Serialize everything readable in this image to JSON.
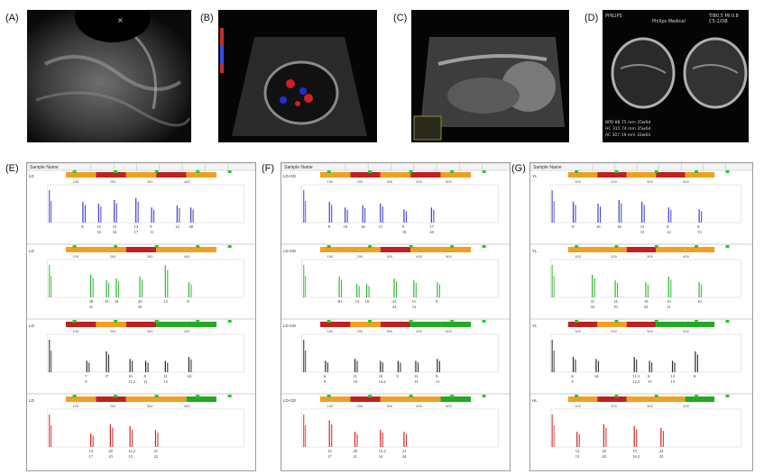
{
  "panels": {
    "A": {
      "label": "(A)"
    },
    "B": {
      "label": "(B)"
    },
    "C": {
      "label": "(C)"
    },
    "D": {
      "label": "(D)",
      "brand": "PHILIPS",
      "vendor": "Philips Medical",
      "probe": "C5-1/OB",
      "index": "TIB0.5  MI 0.8",
      "measurements": [
        "BPD  88.75 mm 35w6d",
        "HC   315.74 mm 35w6d",
        "AC   307.19 mm 33w6d"
      ]
    },
    "E": {
      "label": "(E)"
    },
    "F": {
      "label": "(F)"
    },
    "G": {
      "label": "(G)"
    }
  },
  "colors": {
    "blue": "#3b3bd0",
    "green": "#2fb52f",
    "black": "#222222",
    "red": "#d42020",
    "orange": "#f0a020",
    "darkred": "#c02020",
    "lime": "#22cc22"
  },
  "str": [
    {
      "key": "E",
      "header": "Sample Name",
      "tracks": [
        {
          "name": "LD",
          "color": "blue",
          "ticks": [
            "100",
            "200",
            "300",
            "400"
          ],
          "peaks": [
            {
              "x": 0.18,
              "h": 0.55,
              "top": "X",
              "bot": ""
            },
            {
              "x": 0.26,
              "h": 0.5,
              "top": "15",
              "bot": "16"
            },
            {
              "x": 0.34,
              "h": 0.6,
              "top": "13",
              "bot": "16"
            },
            {
              "x": 0.45,
              "h": 0.65,
              "top": "14",
              "bot": "17"
            },
            {
              "x": 0.53,
              "h": 0.4,
              "top": "9",
              "bot": "11"
            },
            {
              "x": 0.66,
              "h": 0.45,
              "top": "12",
              "bot": ""
            },
            {
              "x": 0.73,
              "h": 0.4,
              "top": "20",
              "bot": ""
            }
          ]
        },
        {
          "name": "LD",
          "color": "green",
          "ticks": [
            "100",
            "200",
            "300",
            "400"
          ],
          "peaks": [
            {
              "x": 0.22,
              "h": 0.6,
              "top": "30",
              "bot": "31"
            },
            {
              "x": 0.3,
              "h": 0.45,
              "top": "15",
              "bot": ""
            },
            {
              "x": 0.35,
              "h": 0.5,
              "top": "16",
              "bot": ""
            },
            {
              "x": 0.47,
              "h": 0.55,
              "top": "20",
              "bot": "25"
            },
            {
              "x": 0.6,
              "h": 0.85,
              "top": "12",
              "bot": ""
            },
            {
              "x": 0.72,
              "h": 0.4,
              "top": "8",
              "bot": ""
            }
          ]
        },
        {
          "name": "LD",
          "color": "black",
          "ticks": [
            "100",
            "200",
            "300",
            "400"
          ],
          "peaks": [
            {
              "x": 0.2,
              "h": 0.3,
              "top": "7",
              "bot": "9"
            },
            {
              "x": 0.3,
              "h": 0.55,
              "top": "17",
              "bot": ""
            },
            {
              "x": 0.42,
              "h": 0.35,
              "top": "10",
              "bot": "11.2"
            },
            {
              "x": 0.5,
              "h": 0.3,
              "top": "8",
              "bot": "11"
            },
            {
              "x": 0.6,
              "h": 0.3,
              "top": "11",
              "bot": "12"
            },
            {
              "x": 0.72,
              "h": 0.4,
              "top": "10",
              "bot": ""
            }
          ]
        },
        {
          "name": "LD",
          "color": "red",
          "ticks": [
            "100",
            "200",
            "300",
            "400"
          ],
          "peaks": [
            {
              "x": 0.22,
              "h": 0.35,
              "top": "15",
              "bot": "17"
            },
            {
              "x": 0.32,
              "h": 0.6,
              "top": "20",
              "bot": "23"
            },
            {
              "x": 0.42,
              "h": 0.55,
              "top": "12.2",
              "bot": "13"
            },
            {
              "x": 0.55,
              "h": 0.45,
              "top": "21",
              "bot": "22"
            }
          ]
        }
      ]
    },
    {
      "key": "F",
      "header": "Sample Name",
      "tracks": [
        {
          "name": "LD-GD",
          "color": "blue",
          "ticks": [
            "100",
            "200",
            "300",
            "400",
            "500"
          ],
          "peaks": [
            {
              "x": 0.14,
              "h": 0.55,
              "top": "X",
              "bot": ""
            },
            {
              "x": 0.22,
              "h": 0.4,
              "top": "16",
              "bot": ""
            },
            {
              "x": 0.31,
              "h": 0.45,
              "top": "16",
              "bot": ""
            },
            {
              "x": 0.4,
              "h": 0.5,
              "top": "11",
              "bot": ""
            },
            {
              "x": 0.52,
              "h": 0.35,
              "top": "9",
              "bot": "10"
            },
            {
              "x": 0.66,
              "h": 0.4,
              "top": "17",
              "bot": "20"
            }
          ]
        },
        {
          "name": "LD-GD",
          "color": "green",
          "ticks": [
            "100",
            "200",
            "300",
            "400",
            "500"
          ],
          "peaks": [
            {
              "x": 0.19,
              "h": 0.55,
              "top": "30",
              "bot": ""
            },
            {
              "x": 0.28,
              "h": 0.35,
              "top": "13",
              "bot": ""
            },
            {
              "x": 0.33,
              "h": 0.35,
              "top": "10",
              "bot": ""
            },
            {
              "x": 0.47,
              "h": 0.5,
              "top": "25",
              "bot": "24"
            },
            {
              "x": 0.57,
              "h": 0.45,
              "top": "11",
              "bot": "12"
            },
            {
              "x": 0.69,
              "h": 0.4,
              "top": "9",
              "bot": ""
            }
          ]
        },
        {
          "name": "LD-GD",
          "color": "black",
          "ticks": [
            "100",
            "200",
            "300",
            "400",
            "500"
          ],
          "peaks": [
            {
              "x": 0.12,
              "h": 0.3,
              "top": "6",
              "bot": "9"
            },
            {
              "x": 0.27,
              "h": 0.35,
              "top": "11",
              "bot": "16"
            },
            {
              "x": 0.4,
              "h": 0.3,
              "top": "10",
              "bot": "14.2"
            },
            {
              "x": 0.49,
              "h": 0.3,
              "top": "9",
              "bot": ""
            },
            {
              "x": 0.58,
              "h": 0.3,
              "top": "12",
              "bot": "13"
            },
            {
              "x": 0.69,
              "h": 0.35,
              "top": "9",
              "bot": "11"
            }
          ]
        },
        {
          "name": "LD-GD",
          "color": "red",
          "ticks": [
            "100",
            "200",
            "300",
            "400",
            "500"
          ],
          "peaks": [
            {
              "x": 0.14,
              "h": 0.7,
              "top": "15",
              "bot": "17"
            },
            {
              "x": 0.27,
              "h": 0.4,
              "top": "20",
              "bot": "21"
            },
            {
              "x": 0.4,
              "h": 0.45,
              "top": "12.2",
              "bot": "14"
            },
            {
              "x": 0.52,
              "h": 0.4,
              "top": "21",
              "bot": "24"
            }
          ]
        }
      ]
    },
    {
      "key": "G",
      "header": "Sample Name",
      "tracks": [
        {
          "name": "YL",
          "color": "blue",
          "ticks": [
            "100",
            "200",
            "300",
            "400"
          ],
          "peaks": [
            {
              "x": 0.12,
              "h": 0.55,
              "top": "X",
              "bot": ""
            },
            {
              "x": 0.25,
              "h": 0.5,
              "top": "16",
              "bot": ""
            },
            {
              "x": 0.36,
              "h": 0.6,
              "top": "16",
              "bot": ""
            },
            {
              "x": 0.48,
              "h": 0.55,
              "top": "13",
              "bot": "15"
            },
            {
              "x": 0.62,
              "h": 0.4,
              "top": "8",
              "bot": "12"
            },
            {
              "x": 0.78,
              "h": 0.35,
              "top": "9",
              "bot": "13"
            }
          ]
        },
        {
          "name": "YL",
          "color": "green",
          "ticks": [
            "100",
            "200",
            "300",
            "400"
          ],
          "peaks": [
            {
              "x": 0.22,
              "h": 0.6,
              "top": "31",
              "bot": "33"
            },
            {
              "x": 0.34,
              "h": 0.45,
              "top": "14",
              "bot": "19"
            },
            {
              "x": 0.5,
              "h": 0.4,
              "top": "19",
              "bot": "23"
            },
            {
              "x": 0.62,
              "h": 0.55,
              "top": "10",
              "bot": "11"
            },
            {
              "x": 0.78,
              "h": 0.4,
              "top": "10",
              "bot": ""
            }
          ]
        },
        {
          "name": "YL",
          "color": "black",
          "ticks": [
            "100",
            "200",
            "300",
            "400"
          ],
          "peaks": [
            {
              "x": 0.12,
              "h": 0.4,
              "top": "6",
              "bot": "9"
            },
            {
              "x": 0.24,
              "h": 0.35,
              "top": "14",
              "bot": ""
            },
            {
              "x": 0.44,
              "h": 0.4,
              "top": "11.3",
              "bot": "12.2"
            },
            {
              "x": 0.52,
              "h": 0.3,
              "top": "8",
              "bot": "13"
            },
            {
              "x": 0.64,
              "h": 0.3,
              "top": "12",
              "bot": "13"
            },
            {
              "x": 0.76,
              "h": 0.55,
              "top": "8",
              "bot": ""
            }
          ]
        },
        {
          "name": "HL",
          "color": "red",
          "ticks": [
            "100",
            "200",
            "300",
            "400"
          ],
          "peaks": [
            {
              "x": 0.14,
              "h": 0.4,
              "top": "12",
              "bot": "13"
            },
            {
              "x": 0.28,
              "h": 0.6,
              "top": "16",
              "bot": "20"
            },
            {
              "x": 0.44,
              "h": 0.55,
              "top": "15",
              "bot": "16.2"
            },
            {
              "x": 0.58,
              "h": 0.5,
              "top": "24",
              "bot": "25"
            }
          ]
        }
      ]
    }
  ]
}
